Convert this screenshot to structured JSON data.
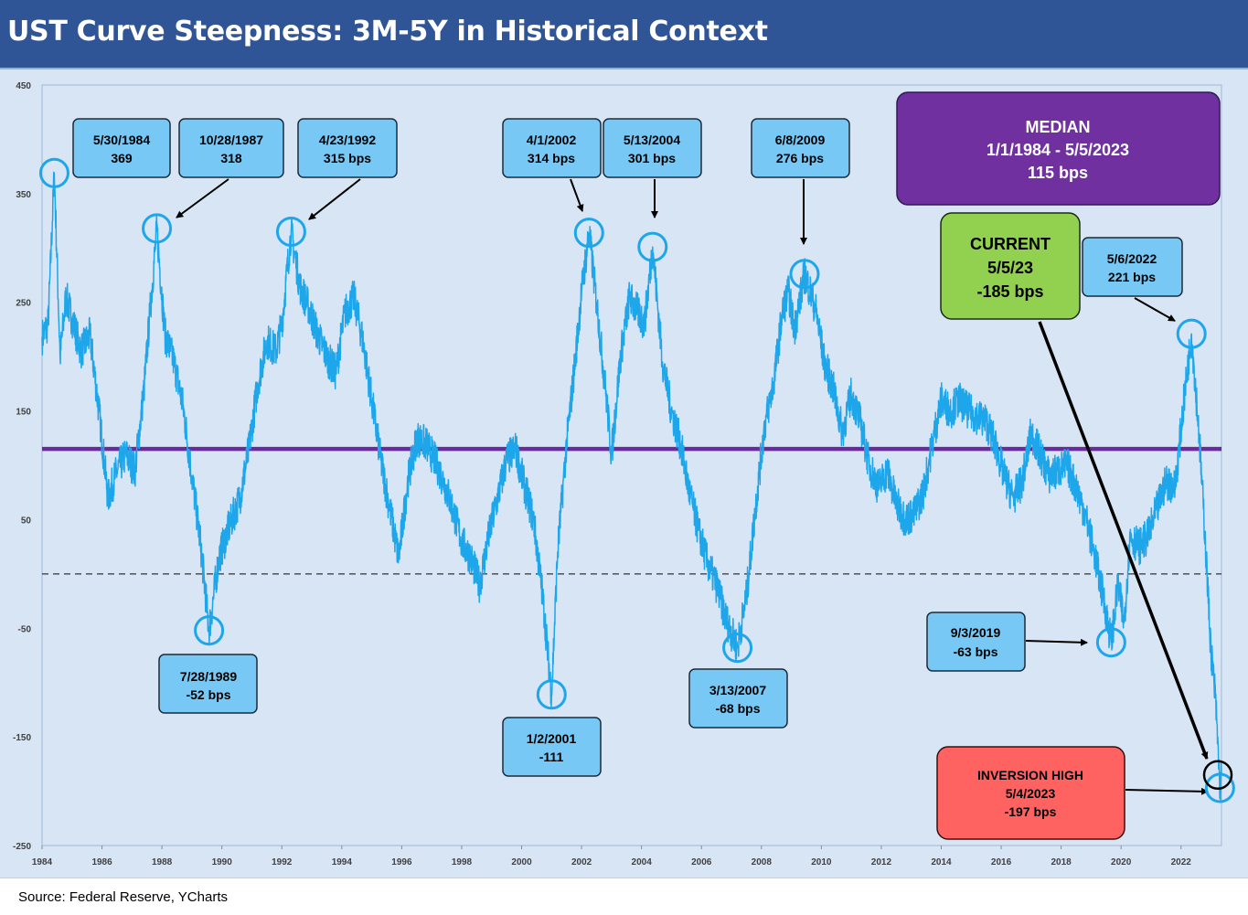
{
  "title": "UST Curve Steepness: 3M-5Y in Historical Context",
  "source": "Source: Federal Reserve, YCharts",
  "colors": {
    "header_bg": "#2f5597",
    "plot_bg": "#d7e5f5",
    "series": "#1ea6ea",
    "median_line": "#6a2a9c",
    "callout": "#77c8f5",
    "median_box": "#7030a0",
    "current_box": "#92d050",
    "inversion_box": "#ff6361"
  },
  "chart_data": {
    "type": "line",
    "title": "UST Curve Steepness: 3M-5Y in Historical Context",
    "xlabel": "",
    "ylabel": "",
    "xlim": [
      1984.0,
      2023.35
    ],
    "ylim": [
      -250,
      450
    ],
    "yticks": [
      450,
      350,
      250,
      150,
      50,
      -50,
      -150,
      -250
    ],
    "xticks": [
      "1984",
      "1986",
      "1988",
      "1990",
      "1992",
      "1994",
      "1996",
      "1998",
      "2000",
      "2002",
      "2004",
      "2006",
      "2008",
      "2010",
      "2012",
      "2014",
      "2016",
      "2018",
      "2020",
      "2022"
    ],
    "grid": false,
    "series": [
      {
        "units": "bps",
        "points": [
          [
            1984.0,
            218
          ],
          [
            1984.2,
            230
          ],
          [
            1984.41,
            369
          ],
          [
            1984.6,
            200
          ],
          [
            1984.8,
            255
          ],
          [
            1985.0,
            235
          ],
          [
            1985.3,
            205
          ],
          [
            1985.6,
            220
          ],
          [
            1985.9,
            150
          ],
          [
            1986.2,
            70
          ],
          [
            1986.5,
            95
          ],
          [
            1986.8,
            110
          ],
          [
            1987.1,
            95
          ],
          [
            1987.4,
            170
          ],
          [
            1987.6,
            240
          ],
          [
            1987.83,
            318
          ],
          [
            1988.1,
            220
          ],
          [
            1988.4,
            195
          ],
          [
            1988.7,
            155
          ],
          [
            1989.0,
            90
          ],
          [
            1989.3,
            25
          ],
          [
            1989.57,
            -52
          ],
          [
            1989.9,
            15
          ],
          [
            1990.2,
            40
          ],
          [
            1990.6,
            70
          ],
          [
            1990.9,
            115
          ],
          [
            1991.2,
            175
          ],
          [
            1991.5,
            215
          ],
          [
            1991.8,
            205
          ],
          [
            1992.0,
            230
          ],
          [
            1992.31,
            315
          ],
          [
            1992.6,
            265
          ],
          [
            1992.9,
            245
          ],
          [
            1993.2,
            220
          ],
          [
            1993.5,
            200
          ],
          [
            1993.8,
            185
          ],
          [
            1994.1,
            240
          ],
          [
            1994.4,
            255
          ],
          [
            1994.7,
            215
          ],
          [
            1995.0,
            160
          ],
          [
            1995.3,
            105
          ],
          [
            1995.6,
            60
          ],
          [
            1995.9,
            15
          ],
          [
            1996.2,
            85
          ],
          [
            1996.5,
            125
          ],
          [
            1996.8,
            120
          ],
          [
            1997.1,
            105
          ],
          [
            1997.4,
            85
          ],
          [
            1997.7,
            60
          ],
          [
            1998.0,
            30
          ],
          [
            1998.3,
            15
          ],
          [
            1998.6,
            -10
          ],
          [
            1998.9,
            35
          ],
          [
            1999.2,
            70
          ],
          [
            1999.5,
            105
          ],
          [
            1999.8,
            115
          ],
          [
            2000.1,
            80
          ],
          [
            2000.4,
            50
          ],
          [
            2000.7,
            -20
          ],
          [
            2001.0,
            -111
          ],
          [
            2001.2,
            20
          ],
          [
            2001.5,
            120
          ],
          [
            2001.8,
            200
          ],
          [
            2002.0,
            260
          ],
          [
            2002.25,
            314
          ],
          [
            2002.5,
            250
          ],
          [
            2002.8,
            170
          ],
          [
            2003.0,
            110
          ],
          [
            2003.3,
            200
          ],
          [
            2003.6,
            255
          ],
          [
            2003.9,
            240
          ],
          [
            2004.1,
            230
          ],
          [
            2004.37,
            301
          ],
          [
            2004.7,
            195
          ],
          [
            2005.0,
            150
          ],
          [
            2005.3,
            120
          ],
          [
            2005.6,
            75
          ],
          [
            2005.9,
            40
          ],
          [
            2006.2,
            10
          ],
          [
            2006.5,
            -10
          ],
          [
            2006.8,
            -40
          ],
          [
            2007.2,
            -68
          ],
          [
            2007.5,
            -20
          ],
          [
            2007.8,
            60
          ],
          [
            2008.1,
            135
          ],
          [
            2008.4,
            175
          ],
          [
            2008.7,
            240
          ],
          [
            2008.9,
            260
          ],
          [
            2009.1,
            225
          ],
          [
            2009.44,
            276
          ],
          [
            2009.8,
            245
          ],
          [
            2010.1,
            195
          ],
          [
            2010.4,
            170
          ],
          [
            2010.7,
            130
          ],
          [
            2011.0,
            165
          ],
          [
            2011.3,
            140
          ],
          [
            2011.6,
            100
          ],
          [
            2011.9,
            80
          ],
          [
            2012.2,
            95
          ],
          [
            2012.5,
            65
          ],
          [
            2012.8,
            50
          ],
          [
            2013.1,
            55
          ],
          [
            2013.4,
            75
          ],
          [
            2013.7,
            120
          ],
          [
            2014.0,
            160
          ],
          [
            2014.3,
            150
          ],
          [
            2014.6,
            160
          ],
          [
            2014.9,
            150
          ],
          [
            2015.2,
            145
          ],
          [
            2015.5,
            140
          ],
          [
            2015.8,
            120
          ],
          [
            2016.1,
            90
          ],
          [
            2016.4,
            70
          ],
          [
            2016.7,
            85
          ],
          [
            2017.0,
            130
          ],
          [
            2017.3,
            110
          ],
          [
            2017.6,
            90
          ],
          [
            2017.9,
            95
          ],
          [
            2018.2,
            100
          ],
          [
            2018.5,
            80
          ],
          [
            2018.8,
            55
          ],
          [
            2019.1,
            20
          ],
          [
            2019.4,
            -20
          ],
          [
            2019.67,
            -63
          ],
          [
            2019.9,
            -10
          ],
          [
            2020.1,
            -45
          ],
          [
            2020.3,
            35
          ],
          [
            2020.6,
            25
          ],
          [
            2020.9,
            35
          ],
          [
            2021.2,
            60
          ],
          [
            2021.5,
            85
          ],
          [
            2021.8,
            80
          ],
          [
            2022.1,
            160
          ],
          [
            2022.35,
            221
          ],
          [
            2022.6,
            130
          ],
          [
            2022.8,
            35
          ],
          [
            2023.0,
            -70
          ],
          [
            2023.15,
            -115
          ],
          [
            2023.3,
            -197
          ],
          [
            2023.35,
            -185
          ]
        ]
      }
    ],
    "reference_lines": [
      {
        "label": "Median",
        "y": 115
      },
      {
        "label": "Zero",
        "y": 0,
        "style": "dashed"
      }
    ],
    "highlighted_points": [
      {
        "date": "5/30/1984",
        "value": 369
      },
      {
        "date": "10/28/1987",
        "value": 318
      },
      {
        "date": "4/23/1992",
        "value": 315
      },
      {
        "date": "4/1/2002",
        "value": 314
      },
      {
        "date": "5/13/2004",
        "value": 301
      },
      {
        "date": "6/8/2009",
        "value": 276
      },
      {
        "date": "5/6/2022",
        "value": 221
      },
      {
        "date": "7/28/1989",
        "value": -52
      },
      {
        "date": "1/2/2001",
        "value": -111
      },
      {
        "date": "3/13/2007",
        "value": -68
      },
      {
        "date": "9/3/2019",
        "value": -63
      },
      {
        "date": "5/4/2023",
        "value": -197
      },
      {
        "date": "5/5/23",
        "value": -185
      }
    ]
  },
  "annotations": {
    "c1984": {
      "date": "5/30/1984",
      "value": "369"
    },
    "c1987": {
      "date": "10/28/1987",
      "value": "318"
    },
    "c1992": {
      "date": "4/23/1992",
      "value": "315 bps"
    },
    "c2002": {
      "date": "4/1/2002",
      "value": "314 bps"
    },
    "c2004": {
      "date": "5/13/2004",
      "value": "301 bps"
    },
    "c2009": {
      "date": "6/8/2009",
      "value": "276 bps"
    },
    "c2022": {
      "date": "5/6/2022",
      "value": "221 bps"
    },
    "c1989": {
      "date": "7/28/1989",
      "value": "-52 bps"
    },
    "c2001": {
      "date": "1/2/2001",
      "value": "-111"
    },
    "c2007": {
      "date": "3/13/2007",
      "value": "-68 bps"
    },
    "c2019": {
      "date": "9/3/2019",
      "value": "-63 bps"
    },
    "median": {
      "line1": "MEDIAN",
      "line2": "1/1/1984 - 5/5/2023",
      "line3": "115 bps"
    },
    "current": {
      "line1": "CURRENT",
      "line2": "5/5/23",
      "line3": "-185 bps"
    },
    "inversion": {
      "line1": "INVERSION HIGH",
      "line2": "5/4/2023",
      "line3": "-197 bps"
    }
  }
}
